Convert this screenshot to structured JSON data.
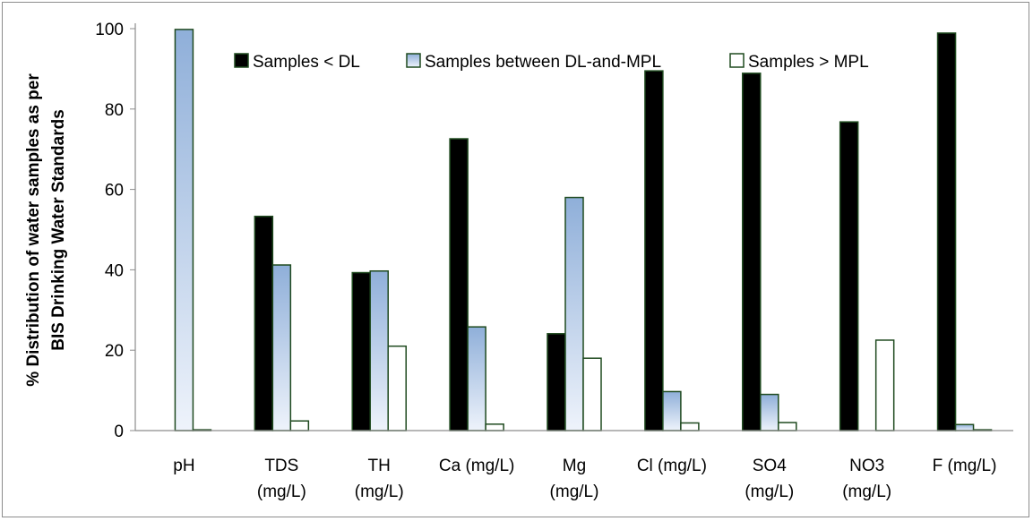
{
  "chart_data": {
    "type": "bar",
    "title": "",
    "xlabel": "",
    "ylabel": [
      "% Distribution of water samples as per",
      "BIS Drinking Water Standards"
    ],
    "ylim": [
      0,
      100
    ],
    "yticks": [
      0,
      20,
      40,
      60,
      80,
      100
    ],
    "categories": [
      [
        "pH"
      ],
      [
        "TDS",
        "(mg/L)"
      ],
      [
        "TH",
        "(mg/L)"
      ],
      [
        "Ca (mg/L)"
      ],
      [
        "Mg",
        "(mg/L)"
      ],
      [
        "Cl (mg/L)"
      ],
      [
        "SO4",
        "(mg/L)"
      ],
      [
        "NO3",
        "(mg/L)"
      ],
      [
        "F (mg/L)"
      ]
    ],
    "series": [
      {
        "name": "Samples < DL",
        "values": [
          0,
          53.3,
          39.3,
          72.6,
          24.1,
          89.5,
          88.9,
          76.8,
          98.9
        ]
      },
      {
        "name": "Samples between DL-and-MPL",
        "values": [
          99.8,
          41.2,
          39.7,
          25.8,
          58.0,
          9.7,
          9.0,
          0,
          1.5
        ]
      },
      {
        "name": "Samples > MPL",
        "values": [
          0.2,
          2.4,
          21.0,
          1.6,
          18.0,
          1.9,
          2.0,
          22.5,
          0.2
        ]
      }
    ],
    "grid": false,
    "legend_position": "top-center",
    "colors": {
      "series_fill": [
        "#000000",
        "gradient-blue",
        "#ffffff"
      ],
      "bar_stroke": "#1f4a1f",
      "gradient_top": "#8fafd9",
      "gradient_bottom": "#eef3fb",
      "axis": "#8c8c8c"
    }
  }
}
